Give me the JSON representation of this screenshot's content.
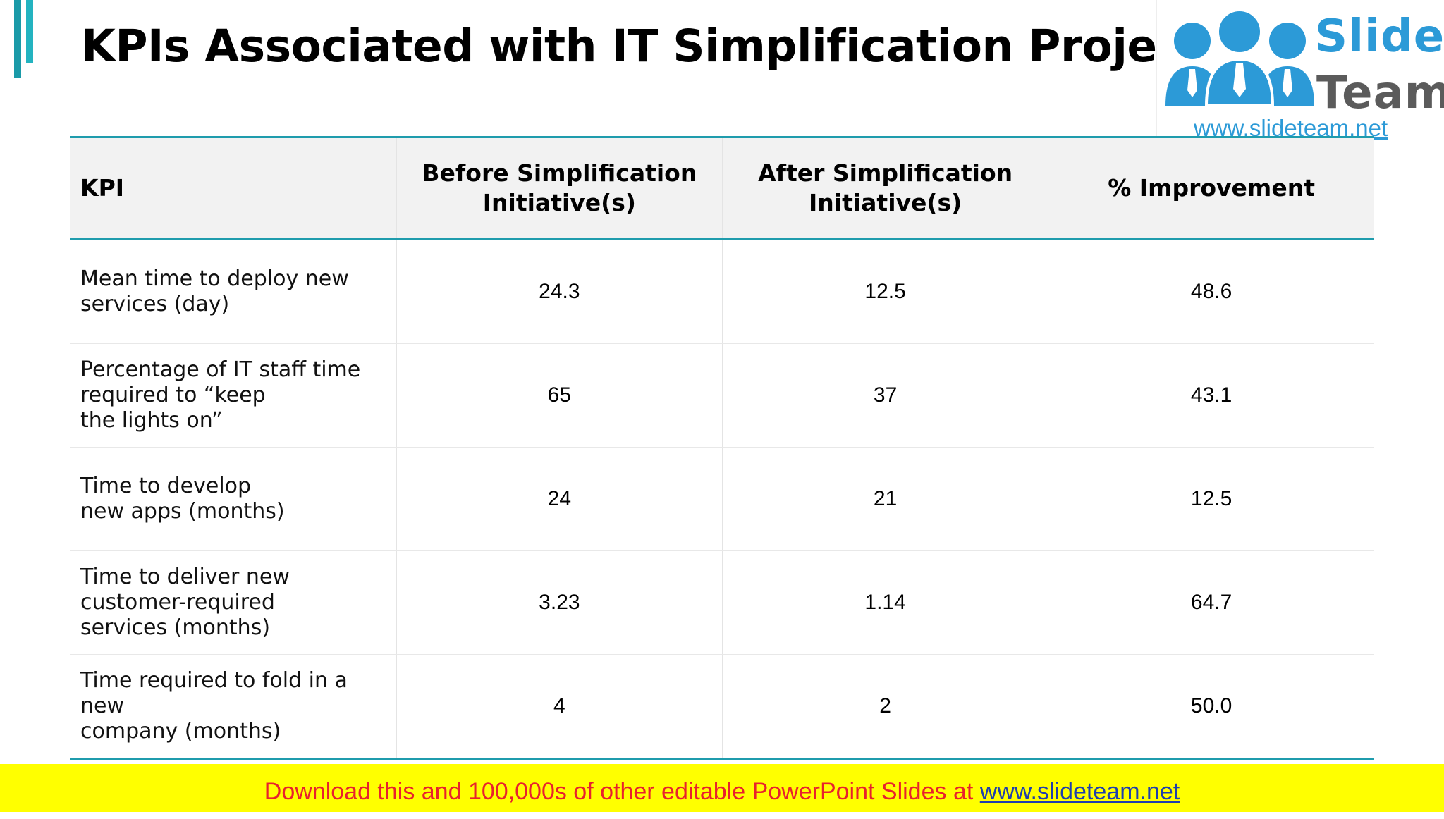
{
  "title": "KPIs Associated with IT Simplification Projects",
  "logo": {
    "word1": "Slide",
    "word2": "Team",
    "url": "www.slideteam.net",
    "colors": {
      "blue": "#2c9ad7",
      "gray": "#5b5b5b"
    }
  },
  "table": {
    "headers": [
      "KPI",
      "Before Simplification Initiative(s)",
      "After Simplification Initiative(s)",
      "% Improvement"
    ],
    "rows": [
      {
        "kpi": "Mean time to deploy new\nservices (day)",
        "before": "24.3",
        "after": "12.5",
        "improvement": "48.6"
      },
      {
        "kpi": "Percentage of IT staff time\nrequired to “keep\nthe lights on”",
        "before": "65",
        "after": "37",
        "improvement": "43.1"
      },
      {
        "kpi": "Time to develop\nnew apps (months)",
        "before": "24",
        "after": "21",
        "improvement": "12.5"
      },
      {
        "kpi": "Time to deliver new\ncustomer-required\nservices (months)",
        "before": "3.23",
        "after": "1.14",
        "improvement": "64.7"
      },
      {
        "kpi": "Time required to fold in a new\ncompany (months)",
        "before": "4",
        "after": "2",
        "improvement": "50.0"
      }
    ]
  },
  "footer": {
    "text": "Download this and 100,000s of other editable PowerPoint Slides at ",
    "link": "www.slideteam.net"
  },
  "colors": {
    "accent": "#1f9cad",
    "header_bg": "#f2f2f2",
    "banner_bg": "#ffff00",
    "banner_text": "#e8212d",
    "banner_link": "#1f3fae"
  }
}
